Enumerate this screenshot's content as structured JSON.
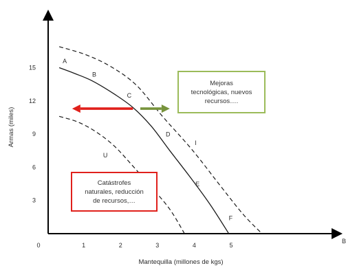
{
  "chart_data": {
    "type": "line",
    "xlabel": "Mantequilla (millones de kgs)",
    "ylabel": "Armas (miles)",
    "x_axis_end_label": "B",
    "x_ticks": [
      "0",
      "1",
      "2",
      "3",
      "4",
      "5"
    ],
    "y_ticks": [
      "3",
      "6",
      "9",
      "12",
      "15"
    ],
    "xlim": [
      0,
      7.7
    ],
    "ylim": [
      0,
      19.5
    ],
    "series": [
      {
        "style": "solid",
        "points": [
          [
            0.3,
            15
          ],
          [
            0.7,
            14.5
          ],
          [
            1.2,
            13.8
          ],
          [
            1.8,
            12.6
          ],
          [
            2.3,
            11.4
          ],
          [
            2.8,
            9.7
          ],
          [
            3.3,
            7.5
          ],
          [
            3.9,
            4.9
          ],
          [
            4.4,
            2.6
          ],
          [
            4.9,
            0
          ]
        ]
      },
      {
        "style": "dashed",
        "points": [
          [
            0.3,
            16.9
          ],
          [
            1.0,
            16.2
          ],
          [
            1.7,
            15.1
          ],
          [
            2.4,
            13.4
          ],
          [
            3.1,
            10.6
          ],
          [
            3.9,
            7.6
          ],
          [
            4.7,
            4.2
          ],
          [
            5.3,
            1.7
          ],
          [
            5.8,
            0
          ]
        ]
      },
      {
        "style": "dashed",
        "points": [
          [
            0.3,
            10.6
          ],
          [
            0.8,
            10.1
          ],
          [
            1.3,
            9.2
          ],
          [
            1.8,
            7.9
          ],
          [
            2.3,
            6.1
          ],
          [
            2.8,
            4.2
          ],
          [
            3.3,
            2.2
          ],
          [
            3.7,
            0
          ]
        ]
      }
    ],
    "point_labels": [
      {
        "label": "A",
        "x": 0.45,
        "y": 15.4
      },
      {
        "label": "B",
        "x": 1.25,
        "y": 14.2
      },
      {
        "label": "C",
        "x": 2.2,
        "y": 12.3
      },
      {
        "label": "D",
        "x": 3.25,
        "y": 8.8
      },
      {
        "label": "I",
        "x": 4.0,
        "y": 8.0
      },
      {
        "label": "U",
        "x": 1.55,
        "y": 6.9
      },
      {
        "label": "E",
        "x": 4.05,
        "y": 4.3
      },
      {
        "label": "F",
        "x": 4.95,
        "y": 1.2
      }
    ],
    "arrows": [
      {
        "direction": "left",
        "color": "#e0201b",
        "from": [
          2.3,
          11.3
        ],
        "to": [
          0.65,
          11.3
        ]
      },
      {
        "direction": "right",
        "color": "#77933c",
        "from": [
          2.5,
          11.3
        ],
        "to": [
          3.3,
          11.3
        ]
      }
    ],
    "annotations": [
      {
        "lines": [
          "Mejoras",
          "tecnológicas, nuevos",
          "recursos…."
        ],
        "border_color": "#9bbb59"
      },
      {
        "lines": [
          "Catástrofes",
          "naturales, reducción",
          "de recursos,…"
        ],
        "border_color": "#e0201b"
      }
    ]
  }
}
